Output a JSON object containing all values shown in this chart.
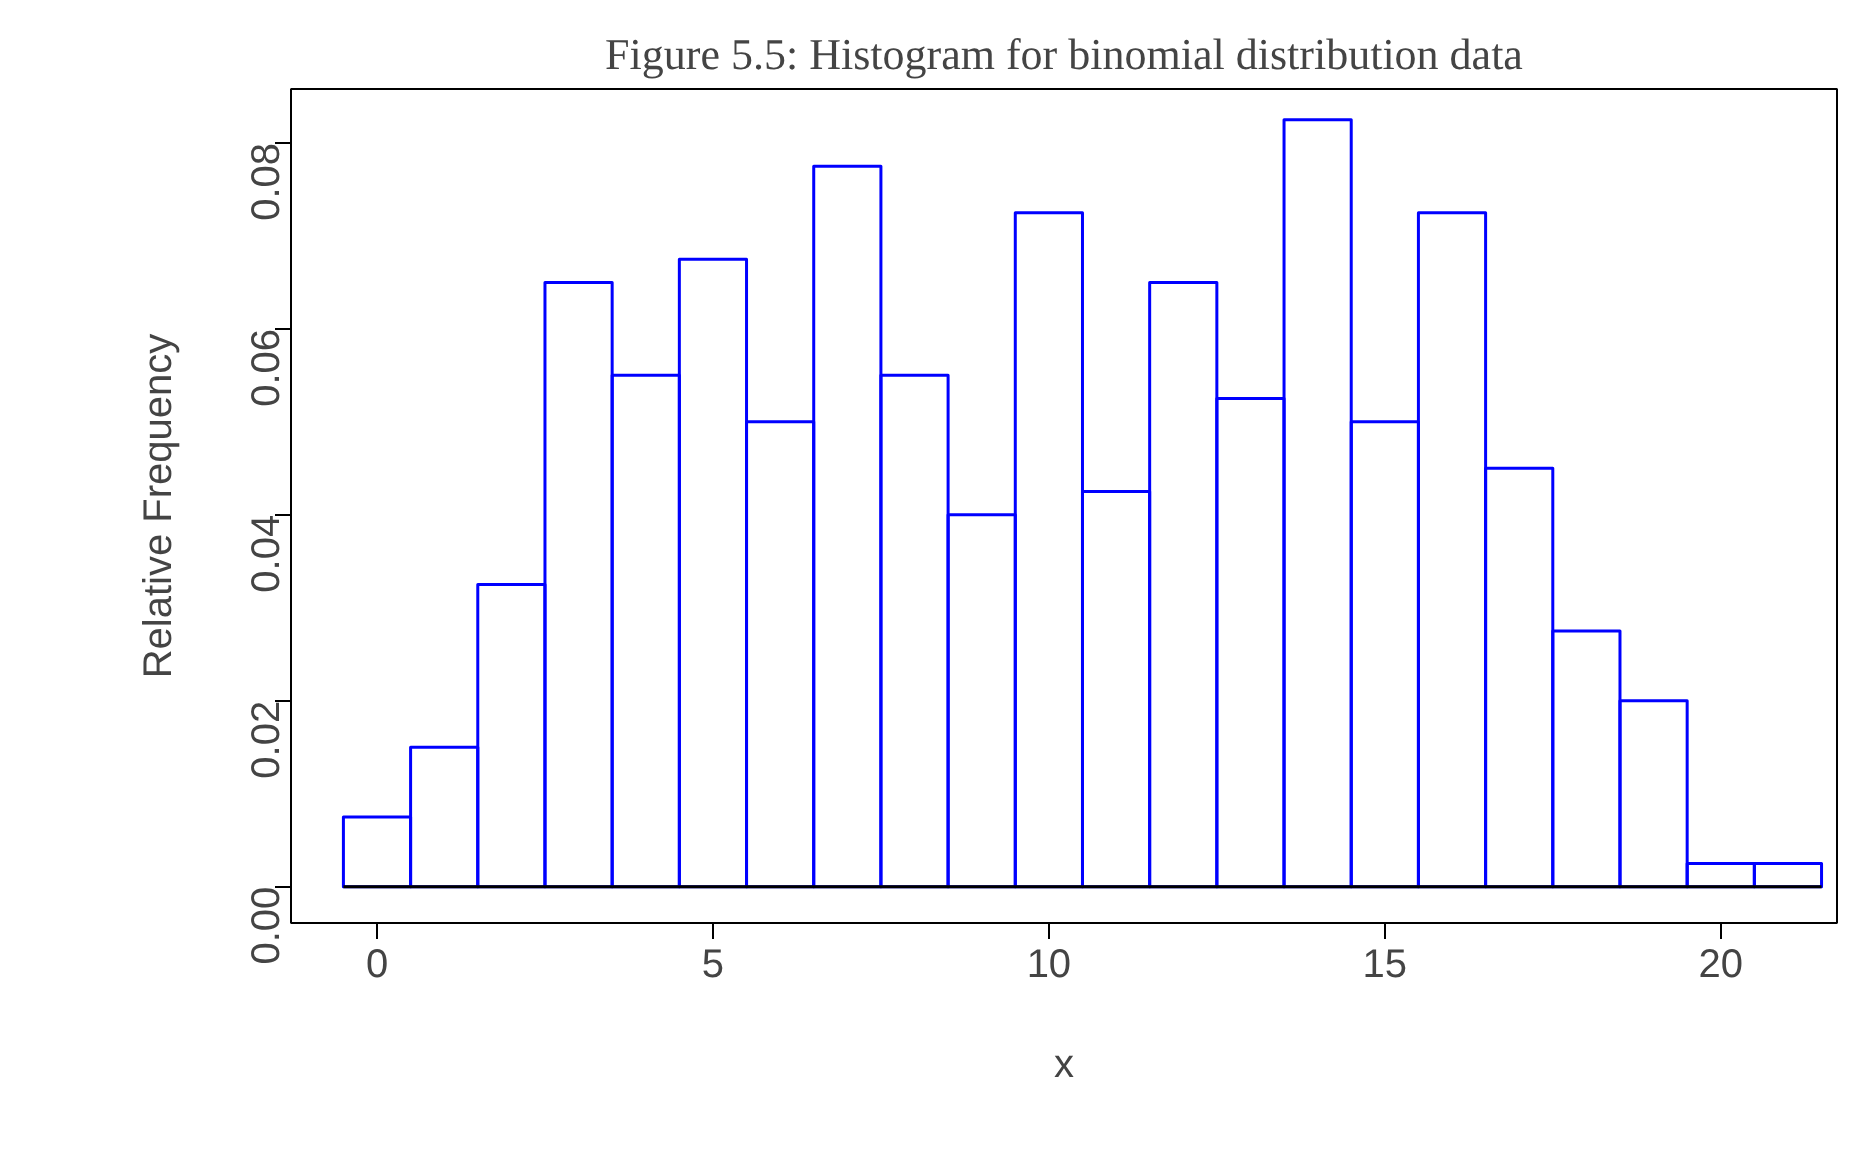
{
  "chart_data": {
    "type": "histogram",
    "title": "Figure 5.5: Histogram for binomial distribution data",
    "xlabel": "x",
    "ylabel": "Relative Frequency",
    "bins": [
      -0.5,
      0.5,
      1.5,
      2.5,
      3.5,
      4.5,
      5.5,
      6.5,
      7.5,
      8.5,
      9.5,
      10.5,
      11.5,
      12.5,
      13.5,
      14.5,
      15.5,
      16.5,
      17.5,
      18.5,
      19.5,
      20.5,
      21.5
    ],
    "values": [
      0.0075,
      0.015,
      0.0325,
      0.065,
      0.055,
      0.0675,
      0.05,
      0.0775,
      0.055,
      0.04,
      0.0725,
      0.0425,
      0.065,
      0.0525,
      0.0825,
      0.05,
      0.0725,
      0.045,
      0.0275,
      0.02,
      0.0025,
      0.0025
    ],
    "color": "#0000ff",
    "xlim": [
      -1.28,
      21.73
    ],
    "ylim": [
      -0.0039,
      0.0858
    ],
    "xticks": [
      0,
      5,
      10,
      15,
      20
    ],
    "yticks": [
      {
        "value": 0,
        "label": "0.00"
      },
      {
        "value": 0.02,
        "label": "0.02"
      },
      {
        "value": 0.04,
        "label": "0.04"
      },
      {
        "value": 0.06,
        "label": "0.06"
      },
      {
        "value": 0.08,
        "label": "0.08"
      }
    ],
    "ref_lines": [
      {
        "axis": "y",
        "value": 0,
        "color": "#000000"
      }
    ],
    "grid": false
  }
}
